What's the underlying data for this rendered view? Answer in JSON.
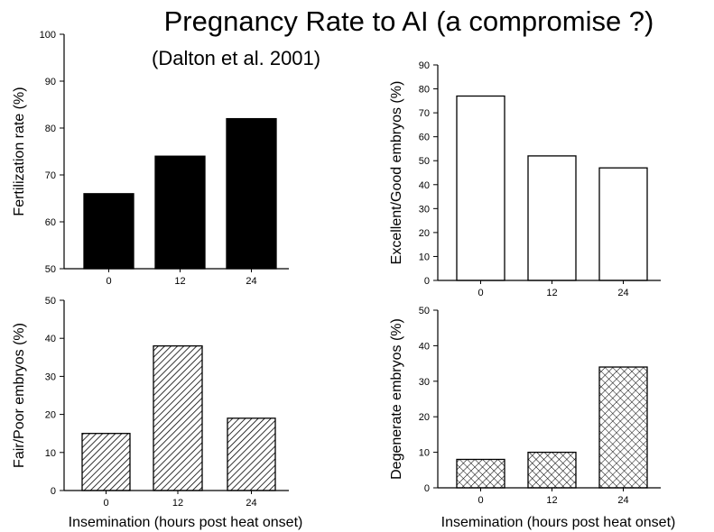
{
  "title": "Pregnancy Rate to AI (a compromise ?)",
  "subtitle": "(Dalton et al. 2001)",
  "colors": {
    "solid": "#000000",
    "outline": "#000000",
    "background": "#ffffff"
  },
  "chart_data": [
    {
      "type": "bar",
      "categories": [
        "0",
        "12",
        "24"
      ],
      "values": [
        66,
        74,
        82
      ],
      "ylabel": "Fertilization  rate  (%)",
      "xlabel": "",
      "ylim": [
        50,
        100
      ],
      "yticks": [
        50,
        60,
        70,
        80,
        90,
        100
      ],
      "fill": "solid"
    },
    {
      "type": "bar",
      "categories": [
        "0",
        "12",
        "24"
      ],
      "values": [
        77,
        52,
        47
      ],
      "ylabel": "Excellent/Good  embryos  (%)",
      "xlabel": "",
      "ylim": [
        0,
        90
      ],
      "yticks": [
        0,
        10,
        20,
        30,
        40,
        50,
        60,
        70,
        80,
        90
      ],
      "fill": "white"
    },
    {
      "type": "bar",
      "categories": [
        "0",
        "12",
        "24"
      ],
      "values": [
        15,
        38,
        19
      ],
      "ylabel": "Fair/Poor  embryos  (%)",
      "xlabel": "Insemination  (hours  post  heat  onset)",
      "ylim": [
        0,
        50
      ],
      "yticks": [
        0,
        10,
        20,
        30,
        40,
        50
      ],
      "fill": "diagonal-hatch"
    },
    {
      "type": "bar",
      "categories": [
        "0",
        "12",
        "24"
      ],
      "values": [
        8,
        10,
        34
      ],
      "ylabel": "Degenerate  embryos  (%)",
      "xlabel": "Insemination  (hours  post  heat  onset)",
      "ylim": [
        0,
        50
      ],
      "yticks": [
        0,
        10,
        20,
        30,
        40,
        50
      ],
      "fill": "cross-hatch"
    }
  ]
}
